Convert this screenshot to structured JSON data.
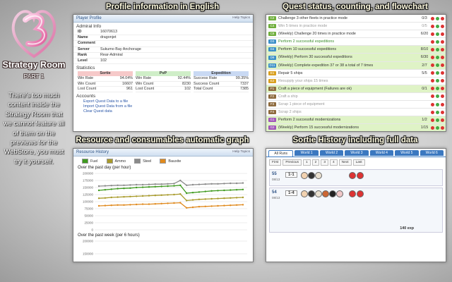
{
  "branding": {
    "title": "Strategy Room",
    "subtitle": "PART 1",
    "description": "There's too much content inside the Strategy Room that we cannot feature all of them on the previews for the WebStore, you must try it yourself."
  },
  "profile": {
    "caption": "Profile information in English",
    "header": "Player Profile",
    "help": "Help Topics",
    "section": "Admiral Info",
    "fields": [
      {
        "label": "ID",
        "value": "16070613"
      },
      {
        "label": "Name",
        "value": "dragonjet"
      },
      {
        "label": "Comment"
      },
      {
        "label": "Server",
        "value": "Sukumo Bay Anchorage"
      },
      {
        "label": "Rank",
        "value": "Rear-Admiral"
      },
      {
        "label": "Level",
        "value": "102"
      }
    ],
    "stats_title": "Statistics",
    "stats": [
      {
        "title": "Sortie",
        "color": "#f6c9c9",
        "rows": [
          {
            "label": "Win Rate",
            "value": "94.04%"
          },
          {
            "label": "Win Count",
            "value": "16607"
          },
          {
            "label": "Lost Count",
            "value": "961"
          }
        ]
      },
      {
        "title": "PvP",
        "color": "#cfeec8",
        "rows": [
          {
            "label": "Win Rate",
            "value": "92.44%"
          },
          {
            "label": "Win Count",
            "value": "8230"
          },
          {
            "label": "Lost Count",
            "value": "102"
          }
        ]
      },
      {
        "title": "Expedition",
        "color": "#c9d9f3",
        "rows": [
          {
            "label": "Success Rate",
            "value": "99.35%"
          },
          {
            "label": "Success Count",
            "value": "7337"
          },
          {
            "label": "Total Count",
            "value": "7385"
          }
        ]
      }
    ],
    "accounts_title": "Accounts",
    "accounts": [
      "Export Quest Data to a file",
      "Import Quest Data from a file",
      "Clear Quest data"
    ]
  },
  "quests": {
    "caption": "Quest status, counting, and flowchart",
    "items": [
      {
        "code": "C2",
        "text": "Challenge 3 other fleets in practice mode",
        "progress": "0/3",
        "state": "idle"
      },
      {
        "code": "C4",
        "text": "Win 5 times in practice mode",
        "progress": "0/5",
        "state": "pending"
      },
      {
        "code": "C8",
        "text": "(Weekly) Challenge 20 times in practice mode",
        "progress": "6/20",
        "state": "idle"
      },
      {
        "code": "D3",
        "text": "Perform 2 successful expeditions",
        "state": "done"
      },
      {
        "code": "D4",
        "text": "Perform 10 successful expeditions",
        "progress": "8/10",
        "state": "active"
      },
      {
        "code": "D9",
        "text": "(Weekly) Perform 30 successful expeditions",
        "progress": "6/30",
        "state": "active"
      },
      {
        "code": "D11",
        "text": "(Weekly) Complete expedition 37 or 38 a total of 7 times",
        "progress": "2/7",
        "state": "active"
      },
      {
        "code": "E1",
        "text": "Repair 5 ships",
        "progress": "5/5",
        "state": "idle"
      },
      {
        "code": "E2",
        "text": "Resupply your ships 15 times",
        "state": "pending"
      },
      {
        "code": "F1",
        "text": "Craft a piece of equipment (Failures are ok)",
        "progress": "0/1",
        "state": "active"
      },
      {
        "code": "F2",
        "text": "Craft a ship",
        "state": "pending"
      },
      {
        "code": "F3",
        "text": "Scrap 1 piece of equipment",
        "state": "pending"
      },
      {
        "code": "F4",
        "text": "Scrap 2 ships",
        "state": "pending"
      },
      {
        "code": "G1",
        "text": "Perform 2 successful modernizations",
        "progress": "1/2",
        "state": "active"
      },
      {
        "code": "G2",
        "text": "(Weekly) Perform 15 successful modernizations",
        "progress": "1/15",
        "state": "active"
      }
    ]
  },
  "resources": {
    "caption": "Resource and consumables automatic graph",
    "header": "Resource History",
    "help": "Help Topics",
    "day_title": "Over the past day (per hour)",
    "graph": {
      "ylim": [
        0,
        200000
      ],
      "yticks": [
        200000,
        175000,
        150000,
        125000,
        100000,
        75000,
        50000,
        25000,
        0
      ],
      "series": [
        {
          "name": "Fuel",
          "color": "#3f9a1f",
          "values": [
            140000,
            142000,
            144000,
            146000,
            147000,
            148000,
            150000,
            151000,
            152000,
            153000,
            154000,
            155000,
            156000,
            158000,
            130000,
            132000,
            134000,
            136000,
            138000,
            139000,
            140000,
            141000,
            142000,
            143000
          ]
        },
        {
          "name": "Ammo",
          "color": "#a89a2a",
          "values": [
            112000,
            113000,
            115000,
            116000,
            117000,
            118000,
            119000,
            120000,
            121000,
            122000,
            123000,
            124000,
            125000,
            127000,
            104000,
            106000,
            108000,
            109000,
            110000,
            111000,
            112000,
            113000,
            114000,
            115000
          ]
        },
        {
          "name": "Steel",
          "color": "#8a8a8a",
          "values": [
            155000,
            156000,
            157000,
            158000,
            158000,
            159000,
            160000,
            160000,
            161000,
            162000,
            162000,
            163000,
            164000,
            175000,
            158000,
            160000,
            161000,
            162000,
            163000,
            163000,
            164000,
            165000,
            165000,
            166000
          ]
        },
        {
          "name": "Bauxite",
          "color": "#e08a1e",
          "values": [
            85000,
            86000,
            87000,
            88000,
            88000,
            89000,
            90000,
            91000,
            91000,
            92000,
            93000,
            94000,
            95000,
            96000,
            78000,
            80000,
            82000,
            83000,
            84000,
            85000,
            86000,
            87000,
            88000,
            89000
          ]
        }
      ]
    },
    "week_title": "Over the past week (per 6 hours)",
    "week_graph": {
      "ylim": [
        100000,
        200000
      ],
      "yticks": [
        200000,
        150000,
        100000
      ]
    }
  },
  "sortie": {
    "caption": "Sortie History including full data",
    "tabs": [
      "All Runs",
      "World 1",
      "World 2",
      "World 3",
      "World 4",
      "World 5",
      "World 6"
    ],
    "pager": [
      "First",
      "Previous",
      "1",
      "2",
      "3",
      "4",
      "Next",
      "Last"
    ],
    "runs": [
      {
        "id": "55",
        "date": "08/13",
        "map": "1-1"
      },
      {
        "id": "54",
        "date": "08/13",
        "map": "1-4",
        "exp": "140 exp"
      }
    ]
  }
}
